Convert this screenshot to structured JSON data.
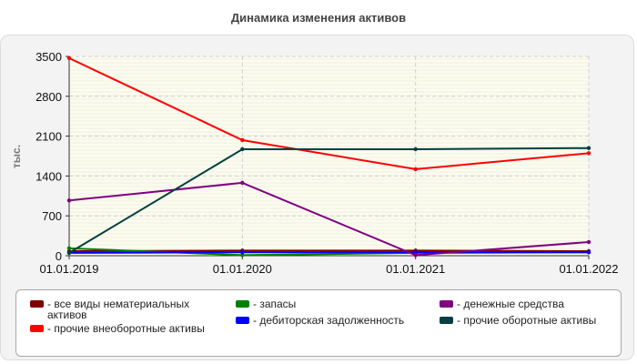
{
  "chart_data": {
    "type": "line",
    "title": "Динамика изменения активов",
    "xlabel": "",
    "ylabel": "тыс.",
    "categories": [
      "01.01.2019",
      "01.01.2020",
      "01.01.2021",
      "01.01.2022"
    ],
    "ylim": [
      0,
      3500
    ],
    "yticks": [
      0,
      700,
      1400,
      2100,
      2800,
      3500
    ],
    "grid": true,
    "legend_position": "bottom",
    "series": [
      {
        "name": "все виды нематериальных активов",
        "color": "#800000",
        "values": [
          80,
          90,
          90,
          80
        ]
      },
      {
        "name": "прочие внеоборотные активы",
        "color": "#ff0000",
        "values": [
          3470,
          2030,
          1520,
          1800
        ]
      },
      {
        "name": "запасы",
        "color": "#008000",
        "values": [
          130,
          10,
          50,
          60
        ]
      },
      {
        "name": "дебиторская задолженность",
        "color": "#0000ff",
        "values": [
          50,
          60,
          60,
          60
        ]
      },
      {
        "name": "денежные средства",
        "color": "#800080",
        "values": [
          970,
          1280,
          10,
          240
        ]
      },
      {
        "name": "прочие оборотные активы",
        "color": "#004040",
        "values": [
          50,
          1870,
          1870,
          1890
        ]
      }
    ]
  }
}
